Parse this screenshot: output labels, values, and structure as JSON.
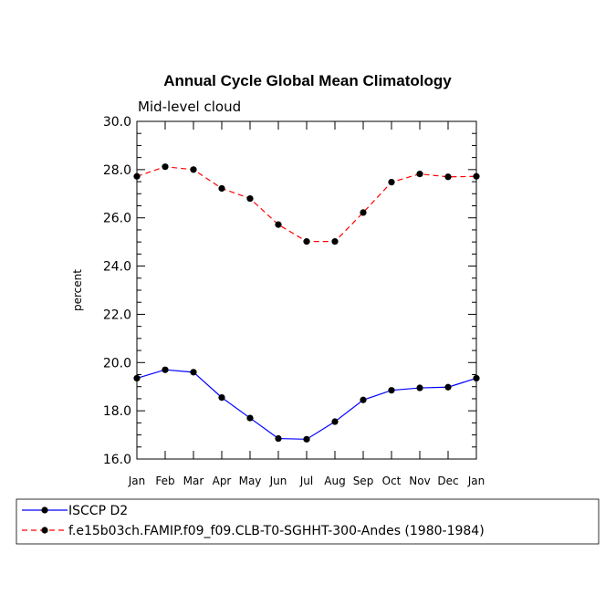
{
  "chart_data": {
    "type": "line",
    "title": "Annual Cycle Global Mean Climatology",
    "subtitle": "Mid-level cloud",
    "ylabel": "percent",
    "xlabel": "",
    "ylim": [
      16.0,
      30.0
    ],
    "yticks": [
      "16.0",
      "18.0",
      "20.0",
      "22.0",
      "24.0",
      "26.0",
      "28.0",
      "30.0"
    ],
    "categories": [
      "Jan",
      "Feb",
      "Mar",
      "Apr",
      "May",
      "Jun",
      "Jul",
      "Aug",
      "Sep",
      "Oct",
      "Nov",
      "Dec",
      "Jan"
    ],
    "series": [
      {
        "name": "ISCCP D2",
        "color": "#0000ff",
        "dash": "solid",
        "values": [
          19.35,
          19.7,
          19.6,
          18.55,
          17.7,
          16.85,
          16.82,
          17.55,
          18.45,
          18.85,
          18.95,
          18.98,
          19.35
        ]
      },
      {
        "name": "f.e15b03ch.FAMIP.f09_f09.CLB-T0-SGHHT-300-Andes (1980-1984)",
        "color": "#ff0000",
        "dash": "dashed",
        "values": [
          27.72,
          28.12,
          28.0,
          27.22,
          26.8,
          25.72,
          25.02,
          25.02,
          26.22,
          27.48,
          27.82,
          27.7,
          27.72
        ]
      }
    ],
    "legend_position": "bottom-left",
    "grid": false
  }
}
